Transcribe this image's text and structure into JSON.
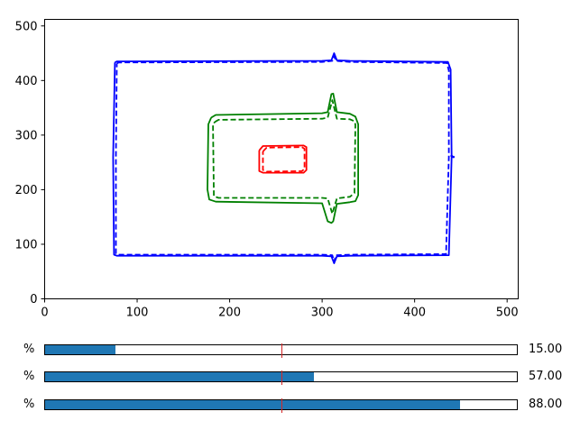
{
  "chart_data": {
    "type": "line",
    "title": "",
    "xlabel": "",
    "ylabel": "",
    "xlim": [
      0,
      512
    ],
    "ylim": [
      0,
      512
    ],
    "xticks": [
      "0",
      "100",
      "200",
      "300",
      "400",
      "500"
    ],
    "yticks": [
      "0",
      "100",
      "200",
      "300",
      "400",
      "500"
    ],
    "grid": false,
    "series": [
      {
        "color": "#0000ff",
        "style": "solid",
        "x": [
          76,
          78,
          300,
          310,
          313,
          316,
          330,
          436,
          439,
          440,
          437,
          330,
          316,
          313,
          310,
          300,
          78,
          75,
          74,
          76
        ],
        "y": [
          433,
          435,
          436,
          437,
          450,
          437,
          436,
          434,
          420,
          260,
          80,
          79,
          78,
          65,
          78,
          79,
          79,
          81,
          260,
          433
        ]
      },
      {
        "color": "#0000ff",
        "style": "dashed",
        "x": [
          78,
          80,
          300,
          311,
          313,
          315,
          330,
          435,
          437,
          437,
          434,
          330,
          315,
          313,
          311,
          300,
          80,
          77,
          77,
          78
        ],
        "y": [
          431,
          433,
          434,
          436,
          445,
          436,
          434,
          432,
          418,
          260,
          82,
          81,
          80,
          68,
          80,
          81,
          81,
          83,
          260,
          431
        ]
      },
      {
        "color": "#0000ff",
        "style": "points",
        "x": [
          440,
          442
        ],
        "y": [
          262,
          260
        ]
      },
      {
        "color": "#008000",
        "style": "solid",
        "x": [
          180,
          185,
          300,
          306,
          310,
          312,
          316,
          330,
          336,
          339,
          339,
          336,
          330,
          316,
          312,
          310,
          306,
          300,
          185,
          178,
          176,
          177,
          180
        ],
        "y": [
          332,
          337,
          340,
          342,
          375,
          376,
          342,
          339,
          334,
          320,
          190,
          179,
          177,
          174,
          142,
          139,
          142,
          175,
          178,
          182,
          200,
          320,
          332
        ]
      },
      {
        "color": "#008000",
        "style": "dashed",
        "x": [
          184,
          188,
          300,
          306,
          311,
          316,
          330,
          334,
          336,
          335,
          330,
          316,
          311,
          306,
          300,
          188,
          183,
          182,
          184
        ],
        "y": [
          324,
          328,
          330,
          332,
          364,
          330,
          329,
          326,
          320,
          194,
          187,
          184,
          156,
          184,
          185,
          185,
          188,
          320,
          324
        ]
      },
      {
        "color": "#ff0000",
        "style": "solid",
        "x": [
          232,
          236,
          280,
          283,
          283,
          280,
          236,
          232,
          232
        ],
        "y": [
          272,
          280,
          281,
          278,
          236,
          231,
          231,
          234,
          272
        ]
      },
      {
        "color": "#ff0000",
        "style": "dashed",
        "x": [
          236,
          240,
          278,
          281,
          281,
          278,
          240,
          236,
          236
        ],
        "y": [
          270,
          277,
          278,
          275,
          238,
          234,
          233,
          236,
          270
        ]
      }
    ]
  },
  "sliders": [
    {
      "label": "%",
      "value": 15.0,
      "min": 0,
      "max": 100,
      "marker": 50,
      "display": "15.00"
    },
    {
      "label": "%",
      "value": 57.0,
      "min": 0,
      "max": 100,
      "marker": 50,
      "display": "57.00"
    },
    {
      "label": "%",
      "value": 88.0,
      "min": 0,
      "max": 100,
      "marker": 50,
      "display": "88.00"
    }
  ],
  "colors": {
    "fill": "#1f77b4",
    "marker": "#d62728"
  }
}
